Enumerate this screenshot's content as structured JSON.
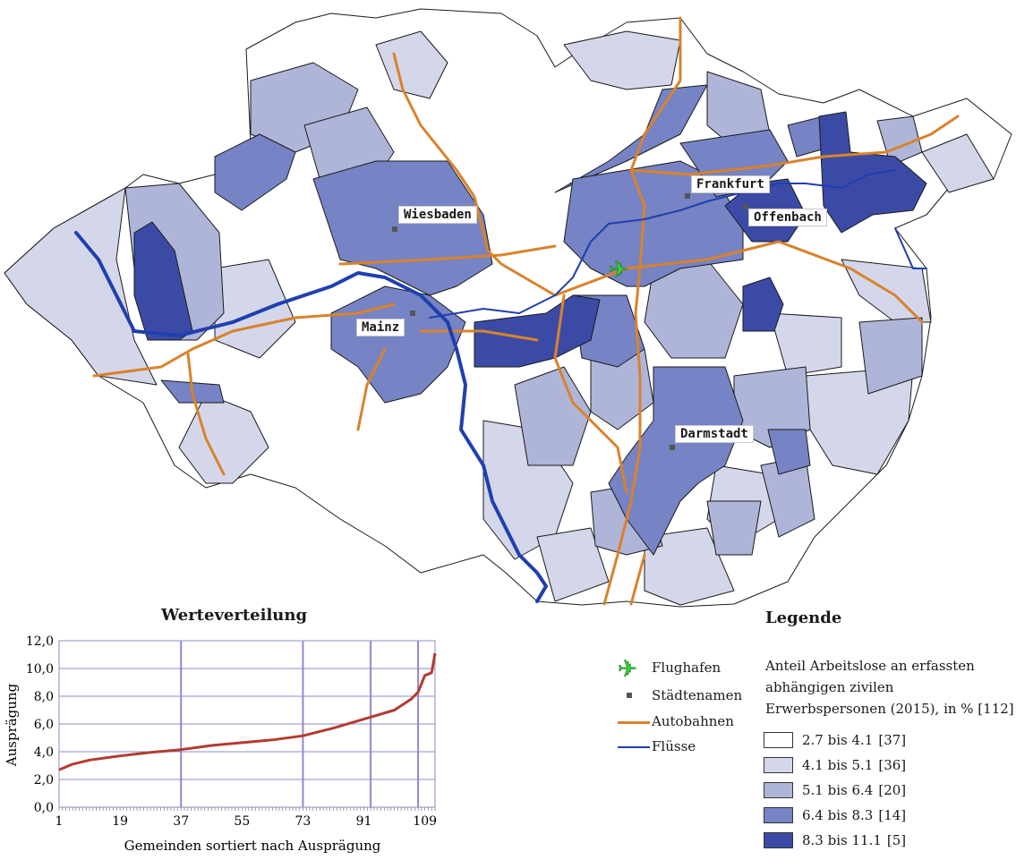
{
  "cities": [
    {
      "name": "Frankfurt"
    },
    {
      "name": "Offenbach"
    },
    {
      "name": "Wiesbaden"
    },
    {
      "name": "Mainz"
    },
    {
      "name": "Darmstadt"
    }
  ],
  "colors": {
    "class1": "#ffffff",
    "class2": "#d4d7ea",
    "class3": "#aeb5d8",
    "class4": "#7683c4",
    "class5": "#3b4ba5",
    "autobahn": "#d9822b",
    "river": "#1f3fb0",
    "airport": "#35d435",
    "dist_line": "#b23b2f",
    "dist_grid": "#8a8fc8",
    "dist_marker": "#9b84c8"
  },
  "distribution": {
    "title": "Werteverteilung",
    "ylabel": "Ausprägung",
    "xlabel": "Gemeinden sortiert nach Ausprägung",
    "yticks": [
      "0,0",
      "2,0",
      "4,0",
      "6,0",
      "8,0",
      "10,0",
      "12,0"
    ],
    "xticks": [
      "1",
      "19",
      "37",
      "55",
      "73",
      "91",
      "109"
    ]
  },
  "chart_data": {
    "type": "line",
    "title": "Werteverteilung",
    "xlabel": "Gemeinden sortiert nach Ausprägung",
    "ylabel": "Ausprägung",
    "ylim": [
      0,
      12
    ],
    "xlim": [
      1,
      112
    ],
    "class_breaks_at_rank": [
      37,
      73,
      93,
      107
    ],
    "curve": [
      {
        "x": 1,
        "y": 2.7
      },
      {
        "x": 5,
        "y": 3.1
      },
      {
        "x": 10,
        "y": 3.4
      },
      {
        "x": 19,
        "y": 3.7
      },
      {
        "x": 28,
        "y": 3.95
      },
      {
        "x": 37,
        "y": 4.15
      },
      {
        "x": 46,
        "y": 4.45
      },
      {
        "x": 55,
        "y": 4.65
      },
      {
        "x": 64,
        "y": 4.85
      },
      {
        "x": 73,
        "y": 5.15
      },
      {
        "x": 82,
        "y": 5.7
      },
      {
        "x": 91,
        "y": 6.35
      },
      {
        "x": 100,
        "y": 7.0
      },
      {
        "x": 105,
        "y": 7.8
      },
      {
        "x": 107,
        "y": 8.3
      },
      {
        "x": 109,
        "y": 9.5
      },
      {
        "x": 111,
        "y": 9.7
      },
      {
        "x": 112,
        "y": 11.1
      }
    ]
  },
  "legend": {
    "title": "Legende",
    "keys": [
      {
        "label": "Flughafen",
        "icon": "airplane-icon"
      },
      {
        "label": "Städtenamen",
        "icon": "city-marker-icon"
      },
      {
        "label": "Autobahnen",
        "icon": "highway-line-icon"
      },
      {
        "label": "Flüsse",
        "icon": "river-line-icon"
      }
    ],
    "description": "Anteil Arbeitslose an erfassten abhängigen zivilen Erwerbspersonen (2015), in % [112]",
    "classes": [
      {
        "label": "2.7 bis 4.1",
        "count": "[37]"
      },
      {
        "label": "4.1 bis 5.1",
        "count": "[36]"
      },
      {
        "label": "5.1 bis 6.4",
        "count": "[20]"
      },
      {
        "label": "6.4 bis 8.3",
        "count": "[14]"
      },
      {
        "label": "8.3 bis 11.1",
        "count": "[5]"
      }
    ]
  }
}
